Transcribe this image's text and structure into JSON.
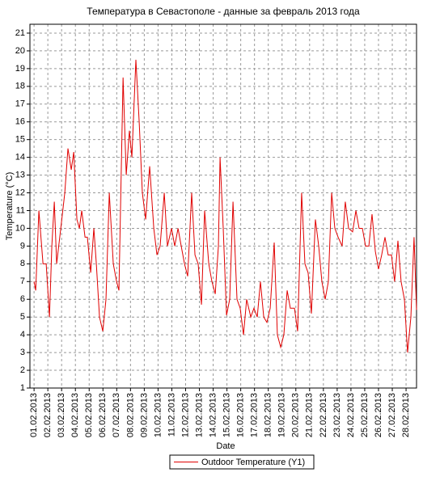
{
  "chart_data": {
    "type": "line",
    "title": "Температура в Севастополе - данные за февраль 2013 года",
    "x_label": "Date",
    "y_label": "Temperature (°C)",
    "grid": true,
    "legend": "bottom",
    "xlim": [
      -0.3,
      27.76
    ],
    "ylim": [
      1,
      21.5
    ],
    "yticks": [
      1,
      2,
      3,
      4,
      5,
      6,
      7,
      8,
      9,
      10,
      11,
      12,
      13,
      14,
      15,
      16,
      17,
      18,
      19,
      20,
      21
    ],
    "xticks": [
      {
        "value": 0,
        "label": "01.02.2013"
      },
      {
        "value": 1,
        "label": "02.02.2013"
      },
      {
        "value": 2,
        "label": "03.02.2013"
      },
      {
        "value": 3,
        "label": "04.02.2013"
      },
      {
        "value": 4,
        "label": "05.02.2013"
      },
      {
        "value": 5,
        "label": "06.02.2013"
      },
      {
        "value": 6,
        "label": "07.02.2013"
      },
      {
        "value": 7,
        "label": "08.02.2013"
      },
      {
        "value": 8,
        "label": "09.02.2013"
      },
      {
        "value": 9,
        "label": "10.02.2013"
      },
      {
        "value": 10,
        "label": "11.02.2013"
      },
      {
        "value": 11,
        "label": "12.02.2013"
      },
      {
        "value": 12,
        "label": "13.02.2013"
      },
      {
        "value": 13,
        "label": "14.02.2013"
      },
      {
        "value": 14,
        "label": "15.02.2013"
      },
      {
        "value": 15,
        "label": "16.02.2013"
      },
      {
        "value": 16,
        "label": "17.02.2013"
      },
      {
        "value": 17,
        "label": "18.02.2013"
      },
      {
        "value": 18,
        "label": "19.02.2013"
      },
      {
        "value": 19,
        "label": "20.02.2013"
      },
      {
        "value": 20,
        "label": "21.02.2013"
      },
      {
        "value": 21,
        "label": "22.02.2013"
      },
      {
        "value": 22,
        "label": "23.02.2013"
      },
      {
        "value": 23,
        "label": "24.02.2013"
      },
      {
        "value": 24,
        "label": "25.02.2013"
      },
      {
        "value": 25,
        "label": "26.02.2013"
      },
      {
        "value": 26,
        "label": "27.02.2013"
      },
      {
        "value": 27,
        "label": "28.02.2013"
      }
    ],
    "x": [
      0.0,
      0.12,
      0.35,
      0.65,
      0.88,
      1.12,
      1.29,
      1.47,
      1.64,
      1.94,
      2.23,
      2.46,
      2.7,
      2.88,
      3.11,
      3.29,
      3.46,
      3.7,
      3.87,
      4.11,
      4.34,
      4.52,
      4.75,
      4.99,
      5.22,
      5.46,
      5.75,
      5.99,
      6.16,
      6.46,
      6.69,
      6.92,
      7.1,
      7.39,
      7.63,
      7.86,
      8.1,
      8.39,
      8.69,
      8.92,
      9.15,
      9.45,
      9.68,
      9.98,
      10.21,
      10.45,
      10.68,
      10.92,
      11.15,
      11.44,
      11.68,
      11.91,
      12.15,
      12.38,
      12.68,
      12.91,
      13.15,
      13.38,
      13.5,
      13.73,
      13.97,
      14.2,
      14.44,
      14.73,
      14.96,
      15.2,
      15.43,
      15.73,
      15.96,
      16.2,
      16.43,
      16.67,
      16.9,
      17.14,
      17.43,
      17.66,
      17.9,
      18.13,
      18.37,
      18.6,
      18.9,
      19.13,
      19.42,
      19.66,
      19.89,
      20.13,
      20.42,
      20.66,
      20.89,
      21.13,
      21.36,
      21.6,
      21.83,
      22.07,
      22.36,
      22.59,
      22.83,
      23.12,
      23.36,
      23.59,
      23.83,
      24.06,
      24.3,
      24.53,
      24.77,
      25.0,
      25.23,
      25.47,
      25.7,
      25.94,
      26.17,
      26.41,
      26.64,
      26.88,
      27.11,
      27.35,
      27.58,
      27.76
    ],
    "series": [
      {
        "name": "Outdoor Temperature (Y1)",
        "color": "#e00000",
        "values": [
          7,
          6.5,
          11,
          8,
          8,
          5,
          9,
          11.5,
          8,
          10,
          12,
          14.5,
          13.3,
          14.3,
          10.5,
          10,
          11,
          9.5,
          9.5,
          7.5,
          10,
          8,
          5,
          4.2,
          6,
          12,
          8,
          7,
          6.5,
          18.5,
          13,
          15.5,
          14,
          19.5,
          16,
          12,
          10.5,
          13.5,
          10,
          8.5,
          9,
          12,
          9,
          10,
          9,
          10,
          9,
          8,
          7.3,
          12,
          8.5,
          8,
          5.7,
          11,
          8,
          7,
          6.3,
          9,
          14,
          10,
          5.1,
          6,
          11.5,
          6,
          5.5,
          4,
          6,
          5,
          5.5,
          5,
          7,
          5,
          4.7,
          5.5,
          9.2,
          4,
          3.3,
          4,
          6.5,
          5.5,
          5.5,
          4.2,
          12,
          8,
          7.5,
          5.2,
          10.5,
          9,
          7,
          6,
          7,
          12,
          10,
          9.5,
          9,
          11.5,
          10,
          9.8,
          11,
          10,
          10,
          9,
          9,
          10.8,
          8.7,
          7.7,
          8.5,
          9.5,
          8.5,
          8.5,
          7,
          9.3,
          7,
          6,
          3,
          5,
          9.5,
          5.4
        ]
      }
    ]
  }
}
